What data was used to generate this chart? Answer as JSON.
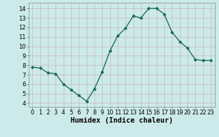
{
  "x": [
    0,
    1,
    2,
    3,
    4,
    5,
    6,
    7,
    8,
    9,
    10,
    11,
    12,
    13,
    14,
    15,
    16,
    17,
    18,
    19,
    20,
    21,
    22,
    23
  ],
  "y": [
    7.8,
    7.7,
    7.2,
    7.1,
    6.0,
    5.4,
    4.8,
    4.2,
    5.5,
    7.3,
    9.5,
    11.1,
    11.9,
    13.2,
    13.0,
    14.0,
    14.0,
    13.4,
    11.5,
    10.5,
    9.8,
    8.6,
    8.5,
    8.5
  ],
  "xlabel": "Humidex (Indice chaleur)",
  "ylim": [
    3.6,
    14.6
  ],
  "xlim": [
    -0.5,
    23.5
  ],
  "yticks": [
    4,
    5,
    6,
    7,
    8,
    9,
    10,
    11,
    12,
    13,
    14
  ],
  "xticks": [
    0,
    1,
    2,
    3,
    4,
    5,
    6,
    7,
    8,
    9,
    10,
    11,
    12,
    13,
    14,
    15,
    16,
    17,
    18,
    19,
    20,
    21,
    22,
    23
  ],
  "line_color": "#1a6b5a",
  "marker": "D",
  "marker_size": 1.8,
  "bg_color": "#cceaea",
  "grid_color": "#b8d8d8",
  "xlabel_fontsize": 7.5,
  "tick_fontsize": 6,
  "line_width": 1.0
}
